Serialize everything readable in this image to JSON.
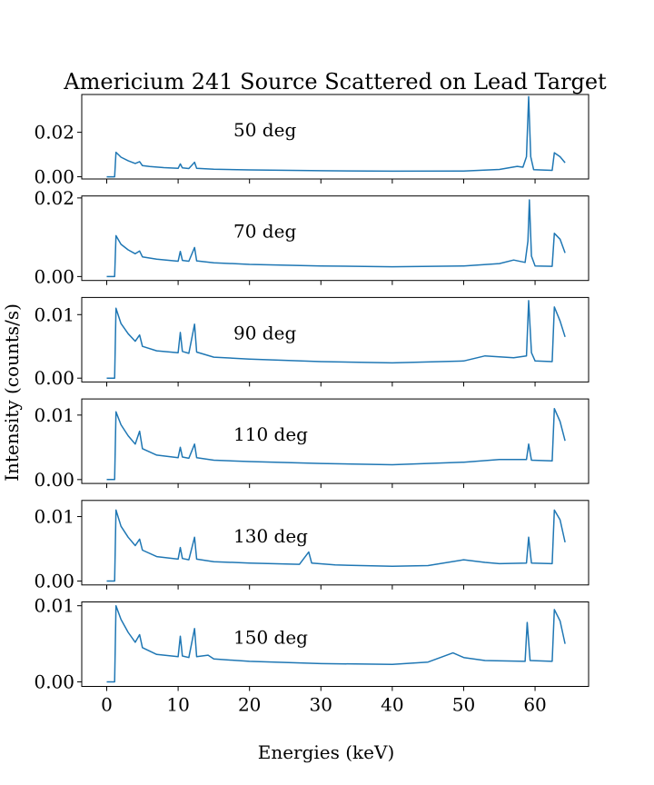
{
  "chart_data": {
    "type": "line",
    "title": "Americium 241 Source Scattered on Lead Target",
    "xlabel": "Energies (keV)",
    "ylabel": "Intensity (counts/s)",
    "xlim": [
      -3.5,
      67.5
    ],
    "x_ticks": [
      0,
      10,
      20,
      30,
      40,
      50,
      60
    ],
    "x_tick_labels": [
      "0",
      "10",
      "20",
      "30",
      "40",
      "50",
      "60"
    ],
    "line_color": "#1f77b4",
    "grid": false,
    "panels": [
      {
        "label": "50 deg",
        "ylim": [
          -0.001,
          0.037
        ],
        "y_ticks": [
          0.0,
          0.02
        ],
        "y_tick_labels": [
          "0.00",
          "0.02"
        ],
        "points": [
          [
            0,
            0.0
          ],
          [
            1.1,
            0.0
          ],
          [
            1.3,
            0.011
          ],
          [
            2,
            0.0088
          ],
          [
            3,
            0.0072
          ],
          [
            4,
            0.006
          ],
          [
            4.6,
            0.0068
          ],
          [
            5,
            0.005
          ],
          [
            6,
            0.0046
          ],
          [
            8,
            0.0041
          ],
          [
            10,
            0.0038
          ],
          [
            10.3,
            0.0058
          ],
          [
            10.6,
            0.004
          ],
          [
            11.5,
            0.0037
          ],
          [
            12.3,
            0.0065
          ],
          [
            12.6,
            0.0038
          ],
          [
            15,
            0.0034
          ],
          [
            20,
            0.0031
          ],
          [
            30,
            0.0027
          ],
          [
            40,
            0.0025
          ],
          [
            50,
            0.0026
          ],
          [
            55,
            0.0033
          ],
          [
            57.5,
            0.0047
          ],
          [
            58.3,
            0.0043
          ],
          [
            58.8,
            0.009
          ],
          [
            59.1,
            0.036
          ],
          [
            59.4,
            0.009
          ],
          [
            59.8,
            0.0032
          ],
          [
            62.4,
            0.0029
          ],
          [
            62.7,
            0.0108
          ],
          [
            63.5,
            0.009
          ],
          [
            64.2,
            0.0063
          ]
        ]
      },
      {
        "label": "70 deg",
        "ylim": [
          -0.001,
          0.0205
        ],
        "y_ticks": [
          0.0,
          0.02
        ],
        "y_tick_labels": [
          "0.00",
          "0.02"
        ],
        "points": [
          [
            0,
            0.0
          ],
          [
            1.1,
            0.0
          ],
          [
            1.3,
            0.0104
          ],
          [
            2,
            0.0082
          ],
          [
            3,
            0.0068
          ],
          [
            4,
            0.0058
          ],
          [
            4.6,
            0.0065
          ],
          [
            5,
            0.005
          ],
          [
            7,
            0.0044
          ],
          [
            10,
            0.0039
          ],
          [
            10.3,
            0.0064
          ],
          [
            10.6,
            0.0041
          ],
          [
            11.5,
            0.0039
          ],
          [
            12.3,
            0.0074
          ],
          [
            12.6,
            0.004
          ],
          [
            15,
            0.0035
          ],
          [
            20,
            0.0031
          ],
          [
            30,
            0.0027
          ],
          [
            40,
            0.0025
          ],
          [
            50,
            0.0027
          ],
          [
            55,
            0.0033
          ],
          [
            57,
            0.0042
          ],
          [
            58.6,
            0.0036
          ],
          [
            59,
            0.009
          ],
          [
            59.2,
            0.0195
          ],
          [
            59.5,
            0.0052
          ],
          [
            60,
            0.0027
          ],
          [
            62.4,
            0.0026
          ],
          [
            62.7,
            0.011
          ],
          [
            63.5,
            0.0095
          ],
          [
            64.2,
            0.006
          ]
        ]
      },
      {
        "label": "90 deg",
        "ylim": [
          -0.0006,
          0.0127
        ],
        "y_ticks": [
          0.0,
          0.01
        ],
        "y_tick_labels": [
          "0.00",
          "0.01"
        ],
        "points": [
          [
            0,
            0.0
          ],
          [
            1.1,
            0.0
          ],
          [
            1.3,
            0.011
          ],
          [
            2,
            0.0086
          ],
          [
            3,
            0.007
          ],
          [
            4,
            0.0058
          ],
          [
            4.6,
            0.0068
          ],
          [
            5,
            0.005
          ],
          [
            7,
            0.0043
          ],
          [
            10,
            0.004
          ],
          [
            10.3,
            0.0072
          ],
          [
            10.6,
            0.0042
          ],
          [
            11.5,
            0.0039
          ],
          [
            12.3,
            0.0085
          ],
          [
            12.6,
            0.0041
          ],
          [
            15,
            0.0033
          ],
          [
            20,
            0.003
          ],
          [
            30,
            0.0026
          ],
          [
            40,
            0.0024
          ],
          [
            50,
            0.0027
          ],
          [
            53,
            0.0035
          ],
          [
            57,
            0.0032
          ],
          [
            58.8,
            0.0035
          ],
          [
            59.1,
            0.0122
          ],
          [
            59.5,
            0.004
          ],
          [
            60,
            0.0027
          ],
          [
            62.4,
            0.0026
          ],
          [
            62.7,
            0.0112
          ],
          [
            63.5,
            0.009
          ],
          [
            64.2,
            0.0065
          ]
        ]
      },
      {
        "label": "110 deg",
        "ylim": [
          -0.0006,
          0.0125
        ],
        "y_ticks": [
          0.0,
          0.01
        ],
        "y_tick_labels": [
          "0.00",
          "0.01"
        ],
        "points": [
          [
            0,
            0.0
          ],
          [
            1.1,
            0.0
          ],
          [
            1.3,
            0.0105
          ],
          [
            2,
            0.0085
          ],
          [
            3,
            0.0068
          ],
          [
            4,
            0.0055
          ],
          [
            4.6,
            0.0075
          ],
          [
            5,
            0.0048
          ],
          [
            7,
            0.0038
          ],
          [
            10,
            0.0034
          ],
          [
            10.3,
            0.005
          ],
          [
            10.6,
            0.0035
          ],
          [
            11.5,
            0.0033
          ],
          [
            12.3,
            0.0055
          ],
          [
            12.6,
            0.0034
          ],
          [
            15,
            0.003
          ],
          [
            20,
            0.0028
          ],
          [
            30,
            0.0025
          ],
          [
            40,
            0.0023
          ],
          [
            50,
            0.0027
          ],
          [
            55,
            0.0031
          ],
          [
            58.8,
            0.0031
          ],
          [
            59.1,
            0.0055
          ],
          [
            59.5,
            0.003
          ],
          [
            62.4,
            0.0029
          ],
          [
            62.7,
            0.011
          ],
          [
            63.5,
            0.009
          ],
          [
            64.2,
            0.006
          ]
        ]
      },
      {
        "label": "130 deg",
        "ylim": [
          -0.0006,
          0.0125
        ],
        "y_ticks": [
          0.0,
          0.01
        ],
        "y_tick_labels": [
          "0.00",
          "0.01"
        ],
        "points": [
          [
            0,
            0.0
          ],
          [
            1.1,
            0.0
          ],
          [
            1.3,
            0.011
          ],
          [
            2,
            0.0085
          ],
          [
            3,
            0.0068
          ],
          [
            4,
            0.0055
          ],
          [
            4.6,
            0.0065
          ],
          [
            5,
            0.0048
          ],
          [
            7,
            0.0038
          ],
          [
            10,
            0.0034
          ],
          [
            10.3,
            0.0052
          ],
          [
            10.6,
            0.0035
          ],
          [
            11.5,
            0.0033
          ],
          [
            12.3,
            0.0068
          ],
          [
            12.6,
            0.0034
          ],
          [
            15,
            0.003
          ],
          [
            20,
            0.0028
          ],
          [
            27,
            0.0026
          ],
          [
            28.3,
            0.0045
          ],
          [
            28.7,
            0.0028
          ],
          [
            32,
            0.0025
          ],
          [
            40,
            0.0023
          ],
          [
            45,
            0.0024
          ],
          [
            50,
            0.0033
          ],
          [
            53,
            0.0029
          ],
          [
            55,
            0.0027
          ],
          [
            58.8,
            0.0028
          ],
          [
            59.1,
            0.0068
          ],
          [
            59.5,
            0.0028
          ],
          [
            62.4,
            0.0027
          ],
          [
            62.7,
            0.011
          ],
          [
            63.5,
            0.0095
          ],
          [
            64.2,
            0.006
          ]
        ]
      },
      {
        "label": "150 deg",
        "ylim": [
          -0.0006,
          0.0105
        ],
        "y_ticks": [
          0.0,
          0.01
        ],
        "y_tick_labels": [
          "0.00",
          "0.01"
        ],
        "points": [
          [
            0,
            0.0
          ],
          [
            1.1,
            0.0
          ],
          [
            1.3,
            0.01
          ],
          [
            2,
            0.0082
          ],
          [
            3,
            0.0065
          ],
          [
            4,
            0.0052
          ],
          [
            4.6,
            0.0062
          ],
          [
            5,
            0.0045
          ],
          [
            7,
            0.0036
          ],
          [
            10,
            0.0033
          ],
          [
            10.3,
            0.006
          ],
          [
            10.6,
            0.0034
          ],
          [
            11.5,
            0.0032
          ],
          [
            12.3,
            0.007
          ],
          [
            12.6,
            0.0033
          ],
          [
            14.2,
            0.0035
          ],
          [
            15,
            0.003
          ],
          [
            20,
            0.0027
          ],
          [
            30,
            0.0024
          ],
          [
            40,
            0.0023
          ],
          [
            45,
            0.0026
          ],
          [
            48.5,
            0.0038
          ],
          [
            50,
            0.0032
          ],
          [
            53,
            0.0028
          ],
          [
            58.6,
            0.0027
          ],
          [
            58.9,
            0.0078
          ],
          [
            59.3,
            0.0028
          ],
          [
            62.4,
            0.0027
          ],
          [
            62.7,
            0.0095
          ],
          [
            63.5,
            0.008
          ],
          [
            64.2,
            0.005
          ]
        ]
      }
    ]
  }
}
